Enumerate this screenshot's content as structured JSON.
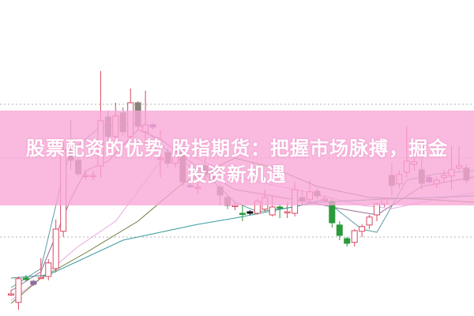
{
  "title": {
    "line1": "股票配资的优势 股指期货：把握市场脉搏，掘金",
    "line2": "投资新机遇"
  },
  "colors": {
    "banner": "#f9a5d6",
    "up": "#d9485f",
    "down": "#8c8279",
    "green": "#2a9a3a",
    "grid": "#b0b0b0"
  },
  "chart_data": {
    "type": "candlestick",
    "title": "",
    "xlabel": "",
    "ylabel": "",
    "ylim": [
      0,
      100
    ],
    "grid": "horizontal-dotted",
    "gridlines": [
      25,
      50,
      67
    ],
    "candles": [
      {
        "o": 7,
        "c": 7,
        "h": 8.3,
        "l": 6.3,
        "k": "up"
      },
      {
        "o": 4.3,
        "c": 11.8,
        "h": 12.5,
        "l": 2,
        "k": "up"
      },
      {
        "o": 12,
        "c": 11.5,
        "h": 13,
        "l": 11,
        "k": "green"
      },
      {
        "o": 11,
        "c": 10,
        "h": 11.5,
        "l": 9.5,
        "k": "purple"
      },
      {
        "o": 12,
        "c": 12.2,
        "h": 18.3,
        "l": 11.8,
        "k": "up"
      },
      {
        "o": 12.5,
        "c": 16.8,
        "h": 18,
        "l": 11.3,
        "k": "up"
      },
      {
        "o": 15,
        "c": 27.5,
        "h": 30.5,
        "l": 13.8,
        "k": "up"
      },
      {
        "o": 26.8,
        "c": 52.5,
        "h": 55,
        "l": 25,
        "k": "up"
      },
      {
        "o": 55.8,
        "c": 49.3,
        "h": 62,
        "l": 46.3,
        "k": "down"
      },
      {
        "o": 49.3,
        "c": 45,
        "h": 50,
        "l": 44,
        "k": "down"
      },
      {
        "o": 44.5,
        "c": 44.5,
        "h": 46,
        "l": 43,
        "k": "up"
      },
      {
        "o": 44.5,
        "c": 44.5,
        "h": 46,
        "l": 43,
        "k": "up"
      },
      {
        "o": 47.5,
        "c": 61.8,
        "h": 77.5,
        "l": 43.8,
        "k": "up"
      },
      {
        "o": 63,
        "c": 56.8,
        "h": 65,
        "l": 55,
        "k": "down"
      },
      {
        "o": 56.8,
        "c": 63.3,
        "h": 67.5,
        "l": 55,
        "k": "up"
      },
      {
        "o": 64.3,
        "c": 58.3,
        "h": 66,
        "l": 57,
        "k": "down"
      },
      {
        "o": 56.8,
        "c": 67.5,
        "h": 72,
        "l": 55,
        "k": "up"
      },
      {
        "o": 67.5,
        "c": 60,
        "h": 68,
        "l": 59,
        "k": "down"
      },
      {
        "o": 58.3,
        "c": 60.5,
        "h": 71.3,
        "l": 53.8,
        "k": "up"
      },
      {
        "o": 60.5,
        "c": 59.8,
        "h": 61,
        "l": 59,
        "k": "purple"
      },
      {
        "o": 50,
        "c": 50,
        "h": 58.8,
        "l": 43.8,
        "k": "up"
      },
      {
        "o": 51.8,
        "c": 48.3,
        "h": 53,
        "l": 47,
        "k": "down"
      },
      {
        "o": 48.3,
        "c": 51.8,
        "h": 53,
        "l": 47,
        "k": "up"
      },
      {
        "o": 51.8,
        "c": 42.5,
        "h": 53,
        "l": 41,
        "k": "down"
      },
      {
        "o": 41.3,
        "c": 41,
        "h": 42,
        "l": 40.5,
        "k": "purple"
      },
      {
        "o": 40.5,
        "c": 40.8,
        "h": 45,
        "l": 38.8,
        "k": "up"
      },
      {
        "o": 47.5,
        "c": 45,
        "h": 50,
        "l": 43,
        "k": "down"
      },
      {
        "o": 45,
        "c": 43,
        "h": 46,
        "l": 42,
        "k": "down"
      },
      {
        "o": 40.8,
        "c": 38.3,
        "h": 41.5,
        "l": 35,
        "k": "down"
      },
      {
        "o": 37.5,
        "c": 35,
        "h": 38,
        "l": 33.8,
        "k": "down"
      },
      {
        "o": 35,
        "c": 35,
        "h": 36,
        "l": 33.5,
        "k": "up"
      },
      {
        "o": 32.5,
        "c": 32.5,
        "h": 35,
        "l": 30,
        "k": "green"
      },
      {
        "o": 33,
        "c": 32.5,
        "h": 33.5,
        "l": 32,
        "k": "black"
      },
      {
        "o": 32.5,
        "c": 36.3,
        "h": 37,
        "l": 32,
        "k": "up"
      },
      {
        "o": 33.8,
        "c": 37.5,
        "h": 40,
        "l": 33,
        "k": "up"
      },
      {
        "o": 32,
        "c": 34.5,
        "h": 38,
        "l": 31.5,
        "k": "up"
      },
      {
        "o": 34.5,
        "c": 34.5,
        "h": 35.5,
        "l": 31,
        "k": "green"
      },
      {
        "o": 33,
        "c": 33,
        "h": 36,
        "l": 31,
        "k": "up"
      },
      {
        "o": 32.5,
        "c": 40,
        "h": 42.5,
        "l": 31.5,
        "k": "up"
      },
      {
        "o": 37.5,
        "c": 36.3,
        "h": 40,
        "l": 35,
        "k": "down"
      },
      {
        "o": 36.8,
        "c": 39.3,
        "h": 43,
        "l": 36,
        "k": "up"
      },
      {
        "o": 39.5,
        "c": 38,
        "h": 40.5,
        "l": 37,
        "k": "down"
      },
      {
        "o": 37,
        "c": 37,
        "h": 38,
        "l": 36,
        "k": "up"
      },
      {
        "o": 36.3,
        "c": 29.5,
        "h": 37,
        "l": 28,
        "k": "green"
      },
      {
        "o": 28.8,
        "c": 25.5,
        "h": 30,
        "l": 24,
        "k": "green"
      },
      {
        "o": 24.5,
        "c": 23,
        "h": 25,
        "l": 22,
        "k": "green"
      },
      {
        "o": 23.3,
        "c": 27,
        "h": 27.5,
        "l": 22,
        "k": "up"
      },
      {
        "o": 26.8,
        "c": 28.3,
        "h": 29,
        "l": 25,
        "k": "up"
      },
      {
        "o": 28.8,
        "c": 31.3,
        "h": 32,
        "l": 27.5,
        "k": "up"
      },
      {
        "o": 32,
        "c": 35.5,
        "h": 36,
        "l": 30,
        "k": "up"
      },
      {
        "o": 35.5,
        "c": 37,
        "h": 37.5,
        "l": 34.5,
        "k": "up"
      },
      {
        "o": 44.5,
        "c": 41.3,
        "h": 48.5,
        "l": 38,
        "k": "down"
      },
      {
        "o": 41.8,
        "c": 44.8,
        "h": 46,
        "l": 40.5,
        "k": "up"
      },
      {
        "o": 45.5,
        "c": 49,
        "h": 60,
        "l": 43.8,
        "k": "up"
      },
      {
        "o": 48,
        "c": 48.8,
        "h": 52,
        "l": 46,
        "k": "up"
      },
      {
        "o": 46.3,
        "c": 42,
        "h": 50,
        "l": 40,
        "k": "down"
      },
      {
        "o": 43.8,
        "c": 42.5,
        "h": 44.5,
        "l": 42,
        "k": "purple"
      },
      {
        "o": 41.8,
        "c": 43,
        "h": 44,
        "l": 40.5,
        "k": "up"
      },
      {
        "o": 43.8,
        "c": 44.5,
        "h": 46,
        "l": 42.5,
        "k": "up"
      },
      {
        "o": 44.3,
        "c": 46.3,
        "h": 53.8,
        "l": 40,
        "k": "up"
      },
      {
        "o": 46.8,
        "c": 47.5,
        "h": 53.8,
        "l": 46,
        "k": "up"
      },
      {
        "o": 46.8,
        "c": 43,
        "h": 48,
        "l": 42,
        "k": "down"
      }
    ],
    "moving_averages": [
      {
        "color": "#5f9ea8",
        "points": [
          [
            0,
            9
          ],
          [
            4,
            15
          ],
          [
            7,
            45
          ],
          [
            8,
            52
          ],
          [
            12,
            60
          ],
          [
            17,
            61
          ],
          [
            22,
            50
          ],
          [
            26,
            45
          ],
          [
            30,
            36
          ],
          [
            33,
            33
          ],
          [
            38,
            34.5
          ],
          [
            42,
            37
          ],
          [
            44,
            33
          ],
          [
            47,
            27.5
          ],
          [
            49,
            26.5
          ],
          [
            53,
            43
          ],
          [
            57,
            45
          ],
          [
            62,
            46
          ]
        ]
      },
      {
        "color": "#9a6b9a",
        "points": [
          [
            0,
            8
          ],
          [
            4,
            14
          ],
          [
            8,
            37
          ],
          [
            10,
            46
          ],
          [
            13,
            49
          ],
          [
            17,
            59
          ],
          [
            20,
            56
          ],
          [
            25,
            47
          ],
          [
            30,
            40
          ],
          [
            40,
            36
          ],
          [
            44,
            34
          ],
          [
            49,
            32
          ],
          [
            55,
            41
          ],
          [
            62,
            44
          ]
        ]
      },
      {
        "color": "#e9a6e0",
        "points": [
          [
            0,
            5
          ],
          [
            4,
            12
          ],
          [
            9,
            22
          ],
          [
            14,
            30
          ],
          [
            20,
            49
          ],
          [
            24,
            51
          ],
          [
            30,
            44
          ],
          [
            40,
            39
          ],
          [
            47,
            35
          ],
          [
            51,
            34
          ],
          [
            57,
            37
          ],
          [
            62,
            39
          ]
        ]
      },
      {
        "color": "#6b7a3a",
        "points": [
          [
            0,
            4
          ],
          [
            4,
            12
          ],
          [
            10,
            20
          ],
          [
            17,
            30
          ],
          [
            23,
            42
          ],
          [
            30,
            50
          ],
          [
            35,
            47
          ],
          [
            41,
            41
          ],
          [
            48,
            37.5
          ],
          [
            55,
            37
          ],
          [
            62,
            36
          ]
        ]
      },
      {
        "color": "#3a9a9a",
        "points": [
          [
            0,
            12
          ],
          [
            5,
            13
          ],
          [
            15,
            24
          ],
          [
            25,
            29
          ],
          [
            30,
            31
          ],
          [
            41,
            36
          ],
          [
            50,
            37
          ],
          [
            62,
            38
          ]
        ]
      }
    ]
  }
}
